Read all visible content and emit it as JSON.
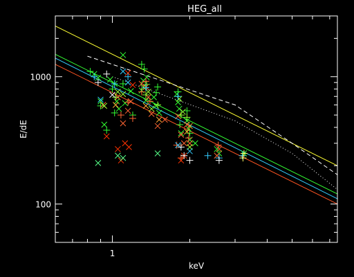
{
  "chart_data": {
    "type": "scatter",
    "title": "HEG_all",
    "xlabel": "keV",
    "ylabel": "E/dE",
    "x_scale": "log",
    "y_scale": "log",
    "xlim": [
      0.6,
      7.5
    ],
    "ylim": [
      50,
      3000
    ],
    "x_tick_labels": [
      {
        "value": 1,
        "label": "1"
      }
    ],
    "y_tick_labels": [
      {
        "value": 100,
        "label": "100"
      },
      {
        "value": 1000,
        "label": "1000"
      }
    ],
    "grid": false,
    "legend": "none",
    "background": "#000000",
    "lines": [
      {
        "color": "#ffff33",
        "style": "solid",
        "points": [
          [
            0.6,
            2500
          ],
          [
            7.5,
            200
          ]
        ]
      },
      {
        "color": "#ffffff",
        "style": "dashed",
        "points": [
          [
            0.8,
            1450
          ],
          [
            3.0,
            600
          ],
          [
            5.0,
            300
          ],
          [
            7.5,
            170
          ]
        ]
      },
      {
        "color": "#ffffff",
        "style": "dotted",
        "points": [
          [
            1.0,
            1000
          ],
          [
            3.0,
            450
          ],
          [
            5.0,
            250
          ],
          [
            7.5,
            130
          ]
        ]
      },
      {
        "color": "#33ff33",
        "style": "solid",
        "points": [
          [
            0.6,
            1500
          ],
          [
            7.5,
            120
          ]
        ]
      },
      {
        "color": "#33ccff",
        "style": "solid",
        "points": [
          [
            0.6,
            1400
          ],
          [
            7.5,
            110
          ]
        ]
      },
      {
        "color": "#ff5522",
        "style": "solid",
        "points": [
          [
            0.6,
            1250
          ],
          [
            7.5,
            100
          ]
        ]
      }
    ],
    "series": [
      {
        "marker": "x",
        "color": "#33ff33",
        "points": [
          [
            0.85,
            1050
          ],
          [
            0.88,
            980
          ],
          [
            0.9,
            640
          ],
          [
            0.93,
            420
          ],
          [
            0.98,
            950
          ],
          [
            1.02,
            880
          ],
          [
            1.04,
            640
          ],
          [
            1.06,
            560
          ],
          [
            1.1,
            1480
          ],
          [
            1.12,
            620
          ],
          [
            1.18,
            770
          ],
          [
            1.3,
            780
          ],
          [
            1.32,
            930
          ],
          [
            1.35,
            650
          ],
          [
            1.36,
            990
          ],
          [
            1.45,
            690
          ],
          [
            1.48,
            590
          ],
          [
            1.52,
            520
          ],
          [
            1.78,
            730
          ],
          [
            1.8,
            630
          ],
          [
            1.82,
            560
          ],
          [
            1.85,
            360
          ],
          [
            1.95,
            450
          ],
          [
            1.98,
            390
          ],
          [
            2.0,
            320
          ],
          [
            2.1,
            300
          ],
          [
            2.55,
            270
          ],
          [
            2.6,
            250
          ],
          [
            3.25,
            250
          ]
        ]
      },
      {
        "marker": "+",
        "color": "#33ff33",
        "points": [
          [
            0.82,
            1100
          ],
          [
            0.9,
            590
          ],
          [
            0.95,
            380
          ],
          [
            1.0,
            800
          ],
          [
            1.02,
            520
          ],
          [
            1.1,
            880
          ],
          [
            1.2,
            500
          ],
          [
            1.3,
            1250
          ],
          [
            1.33,
            1150
          ],
          [
            1.36,
            870
          ],
          [
            1.48,
            750
          ],
          [
            1.5,
            830
          ],
          [
            1.8,
            760
          ],
          [
            1.83,
            420
          ],
          [
            1.95,
            540
          ],
          [
            2.0,
            360
          ]
        ]
      },
      {
        "marker": "x",
        "color": "#ff6633",
        "points": [
          [
            0.92,
            600
          ],
          [
            1.05,
            690
          ],
          [
            1.1,
            430
          ],
          [
            1.15,
            540
          ],
          [
            1.18,
            640
          ],
          [
            1.3,
            880
          ],
          [
            1.35,
            830
          ],
          [
            1.38,
            690
          ],
          [
            1.42,
            510
          ],
          [
            1.5,
            410
          ],
          [
            1.6,
            460
          ],
          [
            1.8,
            490
          ],
          [
            1.85,
            350
          ],
          [
            1.9,
            300
          ],
          [
            1.95,
            420
          ],
          [
            2.0,
            300
          ],
          [
            2.55,
            240
          ],
          [
            2.6,
            270
          ]
        ]
      },
      {
        "marker": "+",
        "color": "#ff6633",
        "points": [
          [
            1.08,
            500
          ],
          [
            1.15,
            630
          ],
          [
            1.2,
            470
          ],
          [
            1.3,
            760
          ],
          [
            1.35,
            920
          ],
          [
            1.4,
            640
          ],
          [
            1.78,
            290
          ],
          [
            1.85,
            230
          ],
          [
            1.98,
            330
          ],
          [
            2.58,
            290
          ]
        ]
      },
      {
        "marker": "x",
        "color": "#ff3300",
        "points": [
          [
            0.95,
            340
          ],
          [
            1.05,
            270
          ],
          [
            1.08,
            220
          ],
          [
            1.12,
            300
          ],
          [
            1.16,
            280
          ],
          [
            1.15,
            1070
          ],
          [
            1.2,
            860
          ],
          [
            1.85,
            220
          ],
          [
            1.9,
            240
          ]
        ]
      },
      {
        "marker": "x",
        "color": "#55ff88",
        "points": [
          [
            0.88,
            210
          ],
          [
            1.05,
            240
          ],
          [
            1.1,
            230
          ],
          [
            1.5,
            250
          ]
        ]
      },
      {
        "marker": "x",
        "color": "#99ff33",
        "points": [
          [
            0.93,
            590
          ],
          [
            1.05,
            760
          ],
          [
            1.1,
            730
          ],
          [
            1.32,
            830
          ],
          [
            1.38,
            760
          ],
          [
            1.42,
            560
          ],
          [
            1.82,
            670
          ],
          [
            1.88,
            530
          ],
          [
            2.0,
            280
          ]
        ]
      },
      {
        "marker": "+",
        "color": "#99ff33",
        "points": [
          [
            1.03,
            690
          ],
          [
            1.35,
            720
          ],
          [
            1.5,
            600
          ],
          [
            1.85,
            500
          ],
          [
            1.95,
            480
          ]
        ]
      },
      {
        "marker": "x",
        "color": "#ffaa33",
        "points": [
          [
            1.03,
            600
          ],
          [
            1.35,
            590
          ],
          [
            1.52,
            460
          ],
          [
            1.95,
            370
          ],
          [
            2.0,
            410
          ]
        ]
      },
      {
        "marker": "+",
        "color": "#33ccff",
        "points": [
          [
            0.85,
            1000
          ],
          [
            1.02,
            880
          ],
          [
            1.15,
            1000
          ],
          [
            1.35,
            820
          ],
          [
            1.8,
            700
          ],
          [
            2.35,
            240
          ],
          [
            2.6,
            230
          ],
          [
            3.2,
            240
          ]
        ]
      },
      {
        "marker": "x",
        "color": "#33ccff",
        "points": [
          [
            0.9,
            660
          ],
          [
            1.1,
            1100
          ],
          [
            1.15,
            900
          ],
          [
            1.8,
            290
          ],
          [
            2.0,
            260
          ]
        ]
      },
      {
        "marker": "+",
        "color": "#ffffff",
        "points": [
          [
            0.88,
            900
          ],
          [
            0.95,
            1050
          ],
          [
            1.85,
            280
          ],
          [
            1.9,
            240
          ],
          [
            2.0,
            220
          ],
          [
            2.6,
            220
          ]
        ]
      },
      {
        "marker": "x",
        "color": "#ffffff",
        "points": [
          [
            1.0,
            720
          ]
        ]
      },
      {
        "marker": "+",
        "color": "#ffff66",
        "points": [
          [
            3.22,
            230
          ],
          [
            3.25,
            250
          ]
        ]
      }
    ]
  }
}
